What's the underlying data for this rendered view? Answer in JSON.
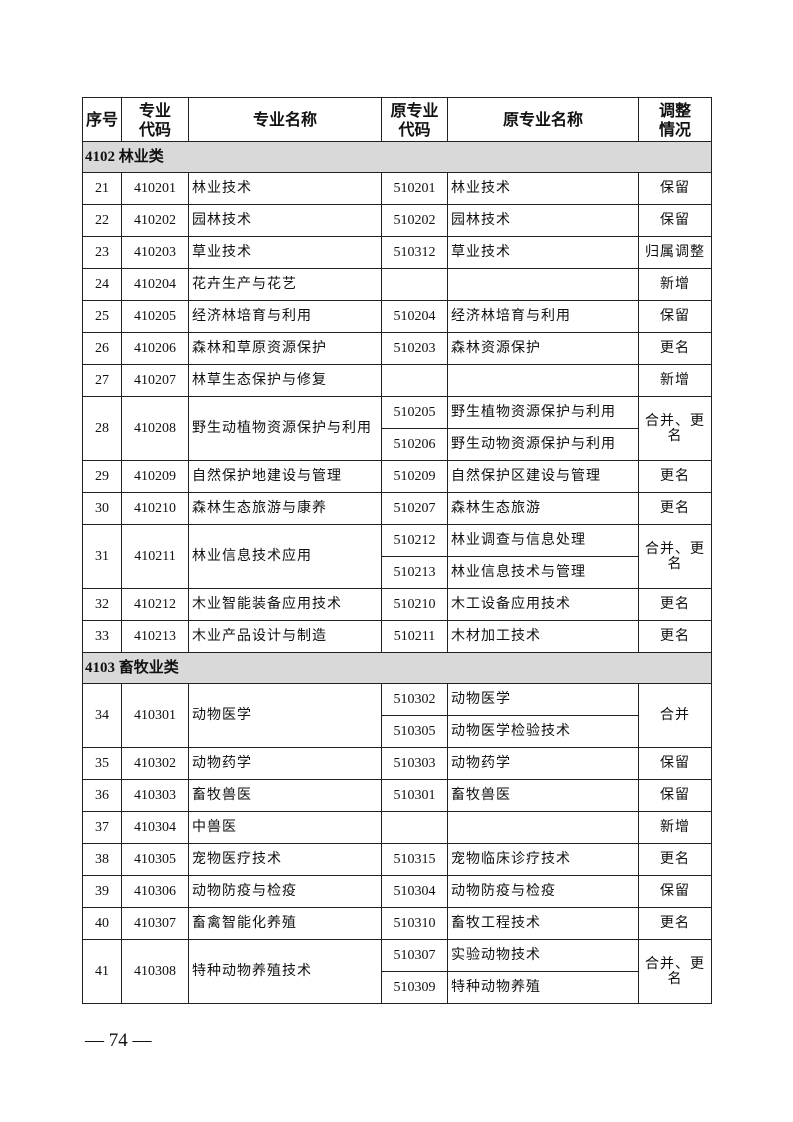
{
  "headers": [
    "序号",
    "专业\n代码",
    "专业名称",
    "原专业\n代码",
    "原专业名称",
    "调整\n情况"
  ],
  "sections": [
    {
      "title": "4102 林业类",
      "rows": [
        {
          "no": "21",
          "code": "410201",
          "name": "林业技术",
          "orig": [
            {
              "code": "510201",
              "name": "林业技术"
            }
          ],
          "status": "保留"
        },
        {
          "no": "22",
          "code": "410202",
          "name": "园林技术",
          "orig": [
            {
              "code": "510202",
              "name": "园林技术"
            }
          ],
          "status": "保留"
        },
        {
          "no": "23",
          "code": "410203",
          "name": "草业技术",
          "orig": [
            {
              "code": "510312",
              "name": "草业技术"
            }
          ],
          "status": "归属调整"
        },
        {
          "no": "24",
          "code": "410204",
          "name": "花卉生产与花艺",
          "orig": [
            {
              "code": "",
              "name": ""
            }
          ],
          "status": "新增"
        },
        {
          "no": "25",
          "code": "410205",
          "name": "经济林培育与利用",
          "orig": [
            {
              "code": "510204",
              "name": "经济林培育与利用"
            }
          ],
          "status": "保留"
        },
        {
          "no": "26",
          "code": "410206",
          "name": "森林和草原资源保护",
          "orig": [
            {
              "code": "510203",
              "name": "森林资源保护"
            }
          ],
          "status": "更名"
        },
        {
          "no": "27",
          "code": "410207",
          "name": "林草生态保护与修复",
          "orig": [
            {
              "code": "",
              "name": ""
            }
          ],
          "status": "新增"
        },
        {
          "no": "28",
          "code": "410208",
          "name": "野生动植物资源保护与利用",
          "orig": [
            {
              "code": "510205",
              "name": "野生植物资源保护与利用"
            },
            {
              "code": "510206",
              "name": "野生动物资源保护与利用"
            }
          ],
          "status": "合并、更名"
        },
        {
          "no": "29",
          "code": "410209",
          "name": "自然保护地建设与管理",
          "orig": [
            {
              "code": "510209",
              "name": "自然保护区建设与管理"
            }
          ],
          "status": "更名"
        },
        {
          "no": "30",
          "code": "410210",
          "name": "森林生态旅游与康养",
          "orig": [
            {
              "code": "510207",
              "name": "森林生态旅游"
            }
          ],
          "status": "更名"
        },
        {
          "no": "31",
          "code": "410211",
          "name": "林业信息技术应用",
          "orig": [
            {
              "code": "510212",
              "name": "林业调查与信息处理"
            },
            {
              "code": "510213",
              "name": "林业信息技术与管理"
            }
          ],
          "status": "合并、更名"
        },
        {
          "no": "32",
          "code": "410212",
          "name": "木业智能装备应用技术",
          "orig": [
            {
              "code": "510210",
              "name": "木工设备应用技术"
            }
          ],
          "status": "更名"
        },
        {
          "no": "33",
          "code": "410213",
          "name": "木业产品设计与制造",
          "orig": [
            {
              "code": "510211",
              "name": "木材加工技术"
            }
          ],
          "status": "更名"
        }
      ]
    },
    {
      "title": "4103 畜牧业类",
      "rows": [
        {
          "no": "34",
          "code": "410301",
          "name": "动物医学",
          "orig": [
            {
              "code": "510302",
              "name": "动物医学"
            },
            {
              "code": "510305",
              "name": "动物医学检验技术"
            }
          ],
          "status": "合并"
        },
        {
          "no": "35",
          "code": "410302",
          "name": "动物药学",
          "orig": [
            {
              "code": "510303",
              "name": "动物药学"
            }
          ],
          "status": "保留"
        },
        {
          "no": "36",
          "code": "410303",
          "name": "畜牧兽医",
          "orig": [
            {
              "code": "510301",
              "name": "畜牧兽医"
            }
          ],
          "status": "保留"
        },
        {
          "no": "37",
          "code": "410304",
          "name": "中兽医",
          "orig": [
            {
              "code": "",
              "name": ""
            }
          ],
          "status": "新增"
        },
        {
          "no": "38",
          "code": "410305",
          "name": "宠物医疗技术",
          "orig": [
            {
              "code": "510315",
              "name": "宠物临床诊疗技术"
            }
          ],
          "status": "更名"
        },
        {
          "no": "39",
          "code": "410306",
          "name": "动物防疫与检疫",
          "orig": [
            {
              "code": "510304",
              "name": "动物防疫与检疫"
            }
          ],
          "status": "保留"
        },
        {
          "no": "40",
          "code": "410307",
          "name": "畜禽智能化养殖",
          "orig": [
            {
              "code": "510310",
              "name": "畜牧工程技术"
            }
          ],
          "status": "更名"
        },
        {
          "no": "41",
          "code": "410308",
          "name": "特种动物养殖技术",
          "orig": [
            {
              "code": "510307",
              "name": "实验动物技术"
            },
            {
              "code": "510309",
              "name": "特种动物养殖"
            }
          ],
          "status": "合并、更名"
        }
      ]
    }
  ],
  "footer": "— 74 —"
}
